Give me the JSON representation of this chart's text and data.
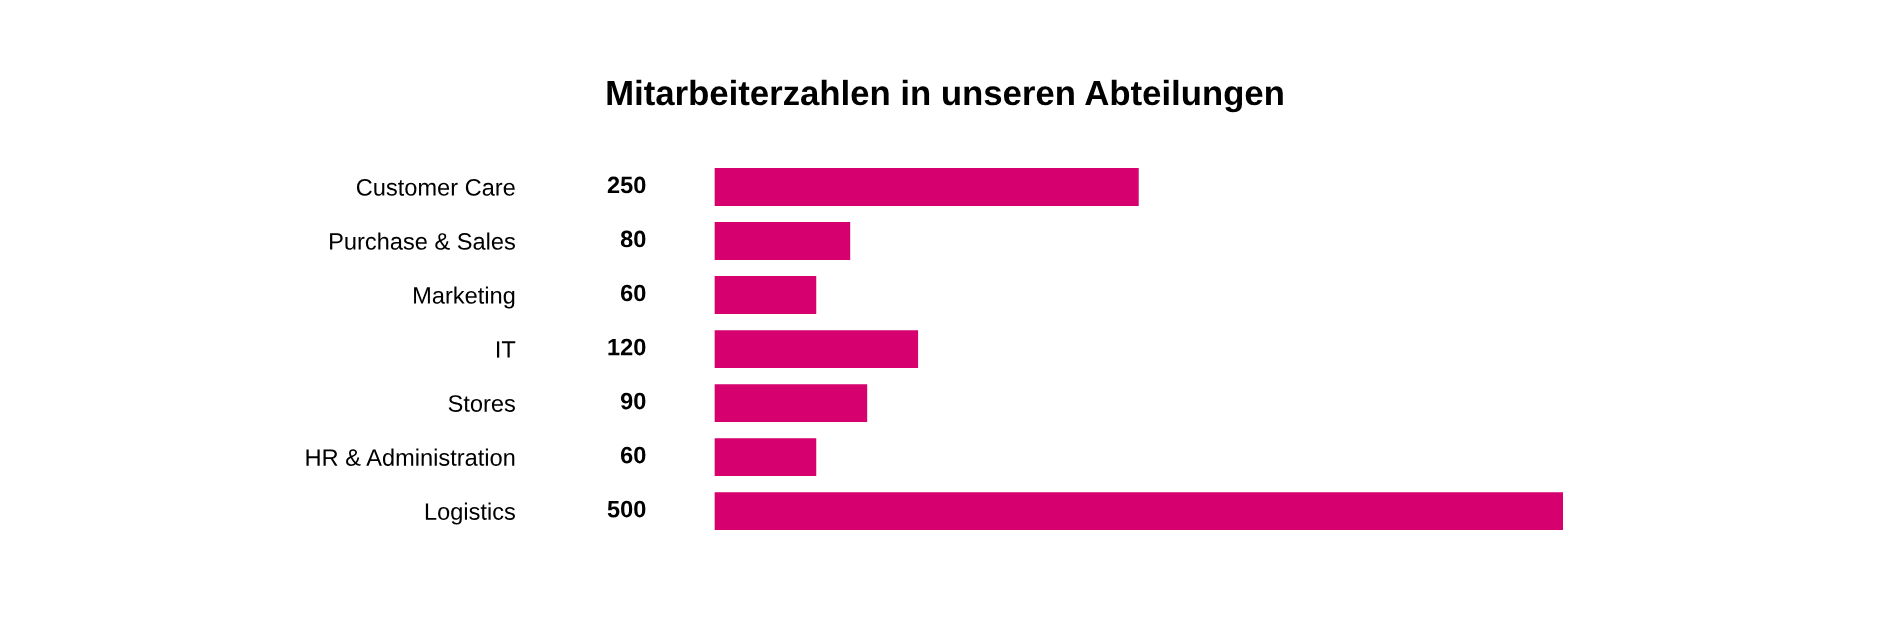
{
  "chart_data": {
    "type": "bar",
    "orientation": "horizontal",
    "title": "Mitarbeiterzahlen in unseren Abteilungen",
    "categories": [
      "Customer Care",
      "Purchase & Sales",
      "Marketing",
      "IT",
      "Stores",
      "HR & Administration",
      "Logistics"
    ],
    "values": [
      250,
      80,
      60,
      120,
      90,
      60,
      500
    ],
    "color": "#d6006e",
    "data_labels": true,
    "grid": false,
    "legend": false
  }
}
